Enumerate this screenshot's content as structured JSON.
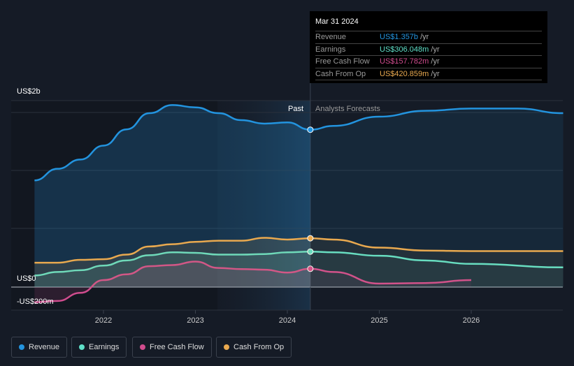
{
  "tooltip": {
    "date": "Mar 31 2024",
    "rows": [
      {
        "label": "Revenue",
        "value": "US$1.357b",
        "unit": " /yr",
        "color": "#2394df"
      },
      {
        "label": "Earnings",
        "value": "US$306.048m",
        "unit": " /yr",
        "color": "#5fe0c8"
      },
      {
        "label": "Free Cash Flow",
        "value": "US$157.782m",
        "unit": " /yr",
        "color": "#d04c8e"
      },
      {
        "label": "Cash From Op",
        "value": "US$420.859m",
        "unit": " /yr",
        "color": "#e9a94f"
      }
    ]
  },
  "chart_data": {
    "type": "line",
    "title": "",
    "xlabel": "",
    "ylabel": "",
    "y_tick_labels": [
      "US$2b",
      "US$0",
      "-US$200m"
    ],
    "x_tick_labels": [
      "2022",
      "2023",
      "2024",
      "2025",
      "2026"
    ],
    "ylim": [
      -0.2,
      1.6
    ],
    "xlim": [
      2021,
      2027
    ],
    "unit": "US$ billions",
    "past_label": "Past",
    "forecast_label": "Analysts Forecasts",
    "divider_x": 2024.25,
    "series": [
      {
        "name": "Revenue",
        "color": "#2394df",
        "x": [
          2021.25,
          2021.5,
          2021.75,
          2022,
          2022.25,
          2022.5,
          2022.75,
          2023,
          2023.25,
          2023.5,
          2023.75,
          2024,
          2024.25,
          2024.5,
          2025,
          2025.5,
          2026,
          2026.5,
          2027
        ],
        "y": [
          0.92,
          1.02,
          1.1,
          1.22,
          1.36,
          1.5,
          1.57,
          1.55,
          1.5,
          1.44,
          1.41,
          1.42,
          1.357,
          1.39,
          1.47,
          1.52,
          1.54,
          1.54,
          1.5
        ]
      },
      {
        "name": "Earnings",
        "color": "#5fe0c8",
        "x": [
          2021.25,
          2021.5,
          2021.75,
          2022,
          2022.25,
          2022.5,
          2022.75,
          2023,
          2023.25,
          2023.5,
          2023.75,
          2024,
          2024.25,
          2024.5,
          2025,
          2025.5,
          2026,
          2027
        ],
        "y": [
          0.1,
          0.13,
          0.145,
          0.185,
          0.23,
          0.275,
          0.3,
          0.295,
          0.28,
          0.28,
          0.285,
          0.3,
          0.306,
          0.3,
          0.27,
          0.23,
          0.2,
          0.17
        ]
      },
      {
        "name": "Free Cash Flow",
        "color": "#d04c8e",
        "x": [
          2021.25,
          2021.5,
          2021.75,
          2022,
          2022.25,
          2022.5,
          2022.75,
          2023,
          2023.25,
          2023.5,
          2023.75,
          2024,
          2024.25,
          2024.5,
          2025,
          2025.5,
          2026
        ],
        "y": [
          -0.13,
          -0.12,
          -0.05,
          0.06,
          0.11,
          0.18,
          0.19,
          0.22,
          0.165,
          0.155,
          0.15,
          0.125,
          0.158,
          0.13,
          0.03,
          0.035,
          0.06
        ]
      },
      {
        "name": "Cash From Op",
        "color": "#e9a94f",
        "x": [
          2021.25,
          2021.5,
          2021.75,
          2022,
          2022.25,
          2022.5,
          2022.75,
          2023,
          2023.25,
          2023.5,
          2023.75,
          2024,
          2024.25,
          2024.5,
          2025,
          2025.5,
          2026,
          2027
        ],
        "y": [
          0.21,
          0.21,
          0.235,
          0.24,
          0.28,
          0.35,
          0.37,
          0.39,
          0.4,
          0.4,
          0.425,
          0.41,
          0.421,
          0.41,
          0.34,
          0.315,
          0.31,
          0.31
        ]
      }
    ]
  }
}
